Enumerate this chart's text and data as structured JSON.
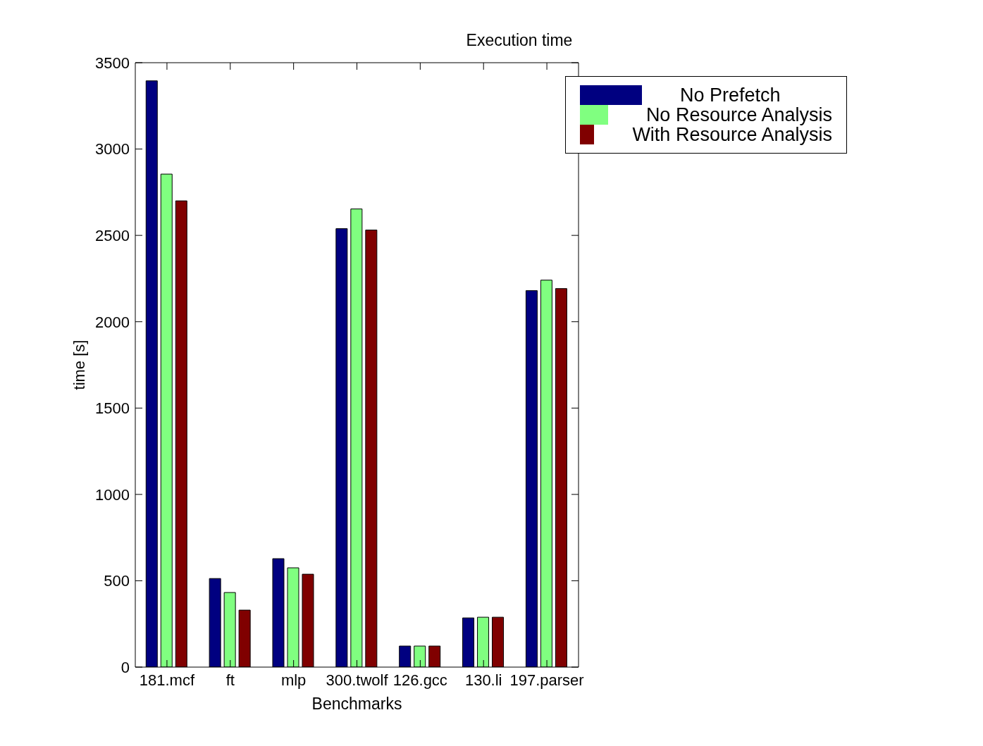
{
  "chart_data": {
    "type": "bar",
    "title": "Execution time",
    "xlabel": "Benchmarks",
    "ylabel": "time [s]",
    "categories": [
      "181.mcf",
      "ft",
      "mlp",
      "300.twolf",
      "126.gcc",
      "130.li",
      "197.parser"
    ],
    "series": [
      {
        "name": "No Prefetch",
        "color": "#000080",
        "values": [
          3395,
          513,
          628,
          2539,
          122,
          285,
          2180
        ]
      },
      {
        "name": "No Resource Analysis",
        "color": "#80ff80",
        "values": [
          2855,
          432,
          575,
          2653,
          122,
          289,
          2241
        ]
      },
      {
        "name": "With Resource Analysis",
        "color": "#800000",
        "values": [
          2700,
          330,
          538,
          2531,
          122,
          289,
          2192
        ]
      }
    ],
    "ylim": [
      0,
      3500
    ],
    "yticks": [
      0,
      500,
      1000,
      1500,
      2000,
      2500,
      3000,
      3500
    ],
    "grid": false,
    "legend": "top right"
  }
}
